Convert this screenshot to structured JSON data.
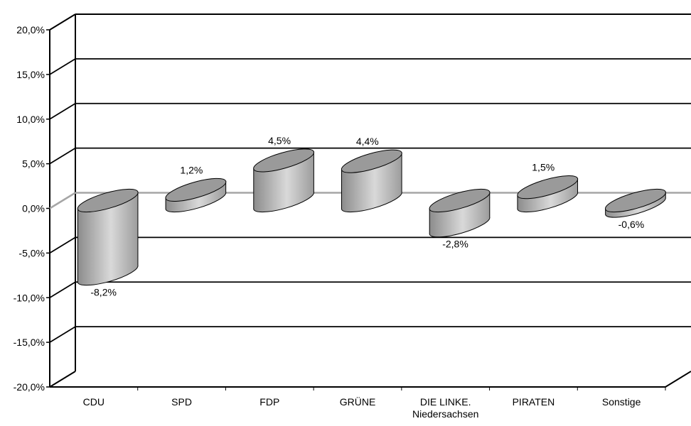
{
  "chart_data": {
    "type": "bar",
    "categories": [
      "CDU",
      "SPD",
      "FDP",
      "GRÜNE",
      "DIE LINKE.\nNiedersachsen",
      "PIRATEN",
      "Sonstige"
    ],
    "values": [
      -8.2,
      1.2,
      4.5,
      4.4,
      -2.8,
      1.5,
      -0.6
    ],
    "data_labels": [
      "-8,2%",
      "1,2%",
      "4,5%",
      "4,4%",
      "-2,8%",
      "1,5%",
      "-0,6%"
    ],
    "y_ticks": [
      20,
      15,
      10,
      5,
      0,
      -5,
      -10,
      -15,
      -20
    ],
    "y_tick_labels": [
      "20,0%",
      "15,0%",
      "10,0%",
      "5,0%",
      "0,0%",
      "-5,0%",
      "-10,0%",
      "-15,0%",
      "-20,0%"
    ],
    "ylim": [
      -20,
      20
    ],
    "grid": true,
    "style": "3d-cylinder",
    "colors": {
      "bar_side_dark": "#8c8c8c",
      "bar_side_light": "#d9d9d9",
      "bar_top": "#9a9a9a",
      "zero_line": "#a6a6a6",
      "grid_line": "#000000",
      "background": "#ffffff"
    }
  }
}
